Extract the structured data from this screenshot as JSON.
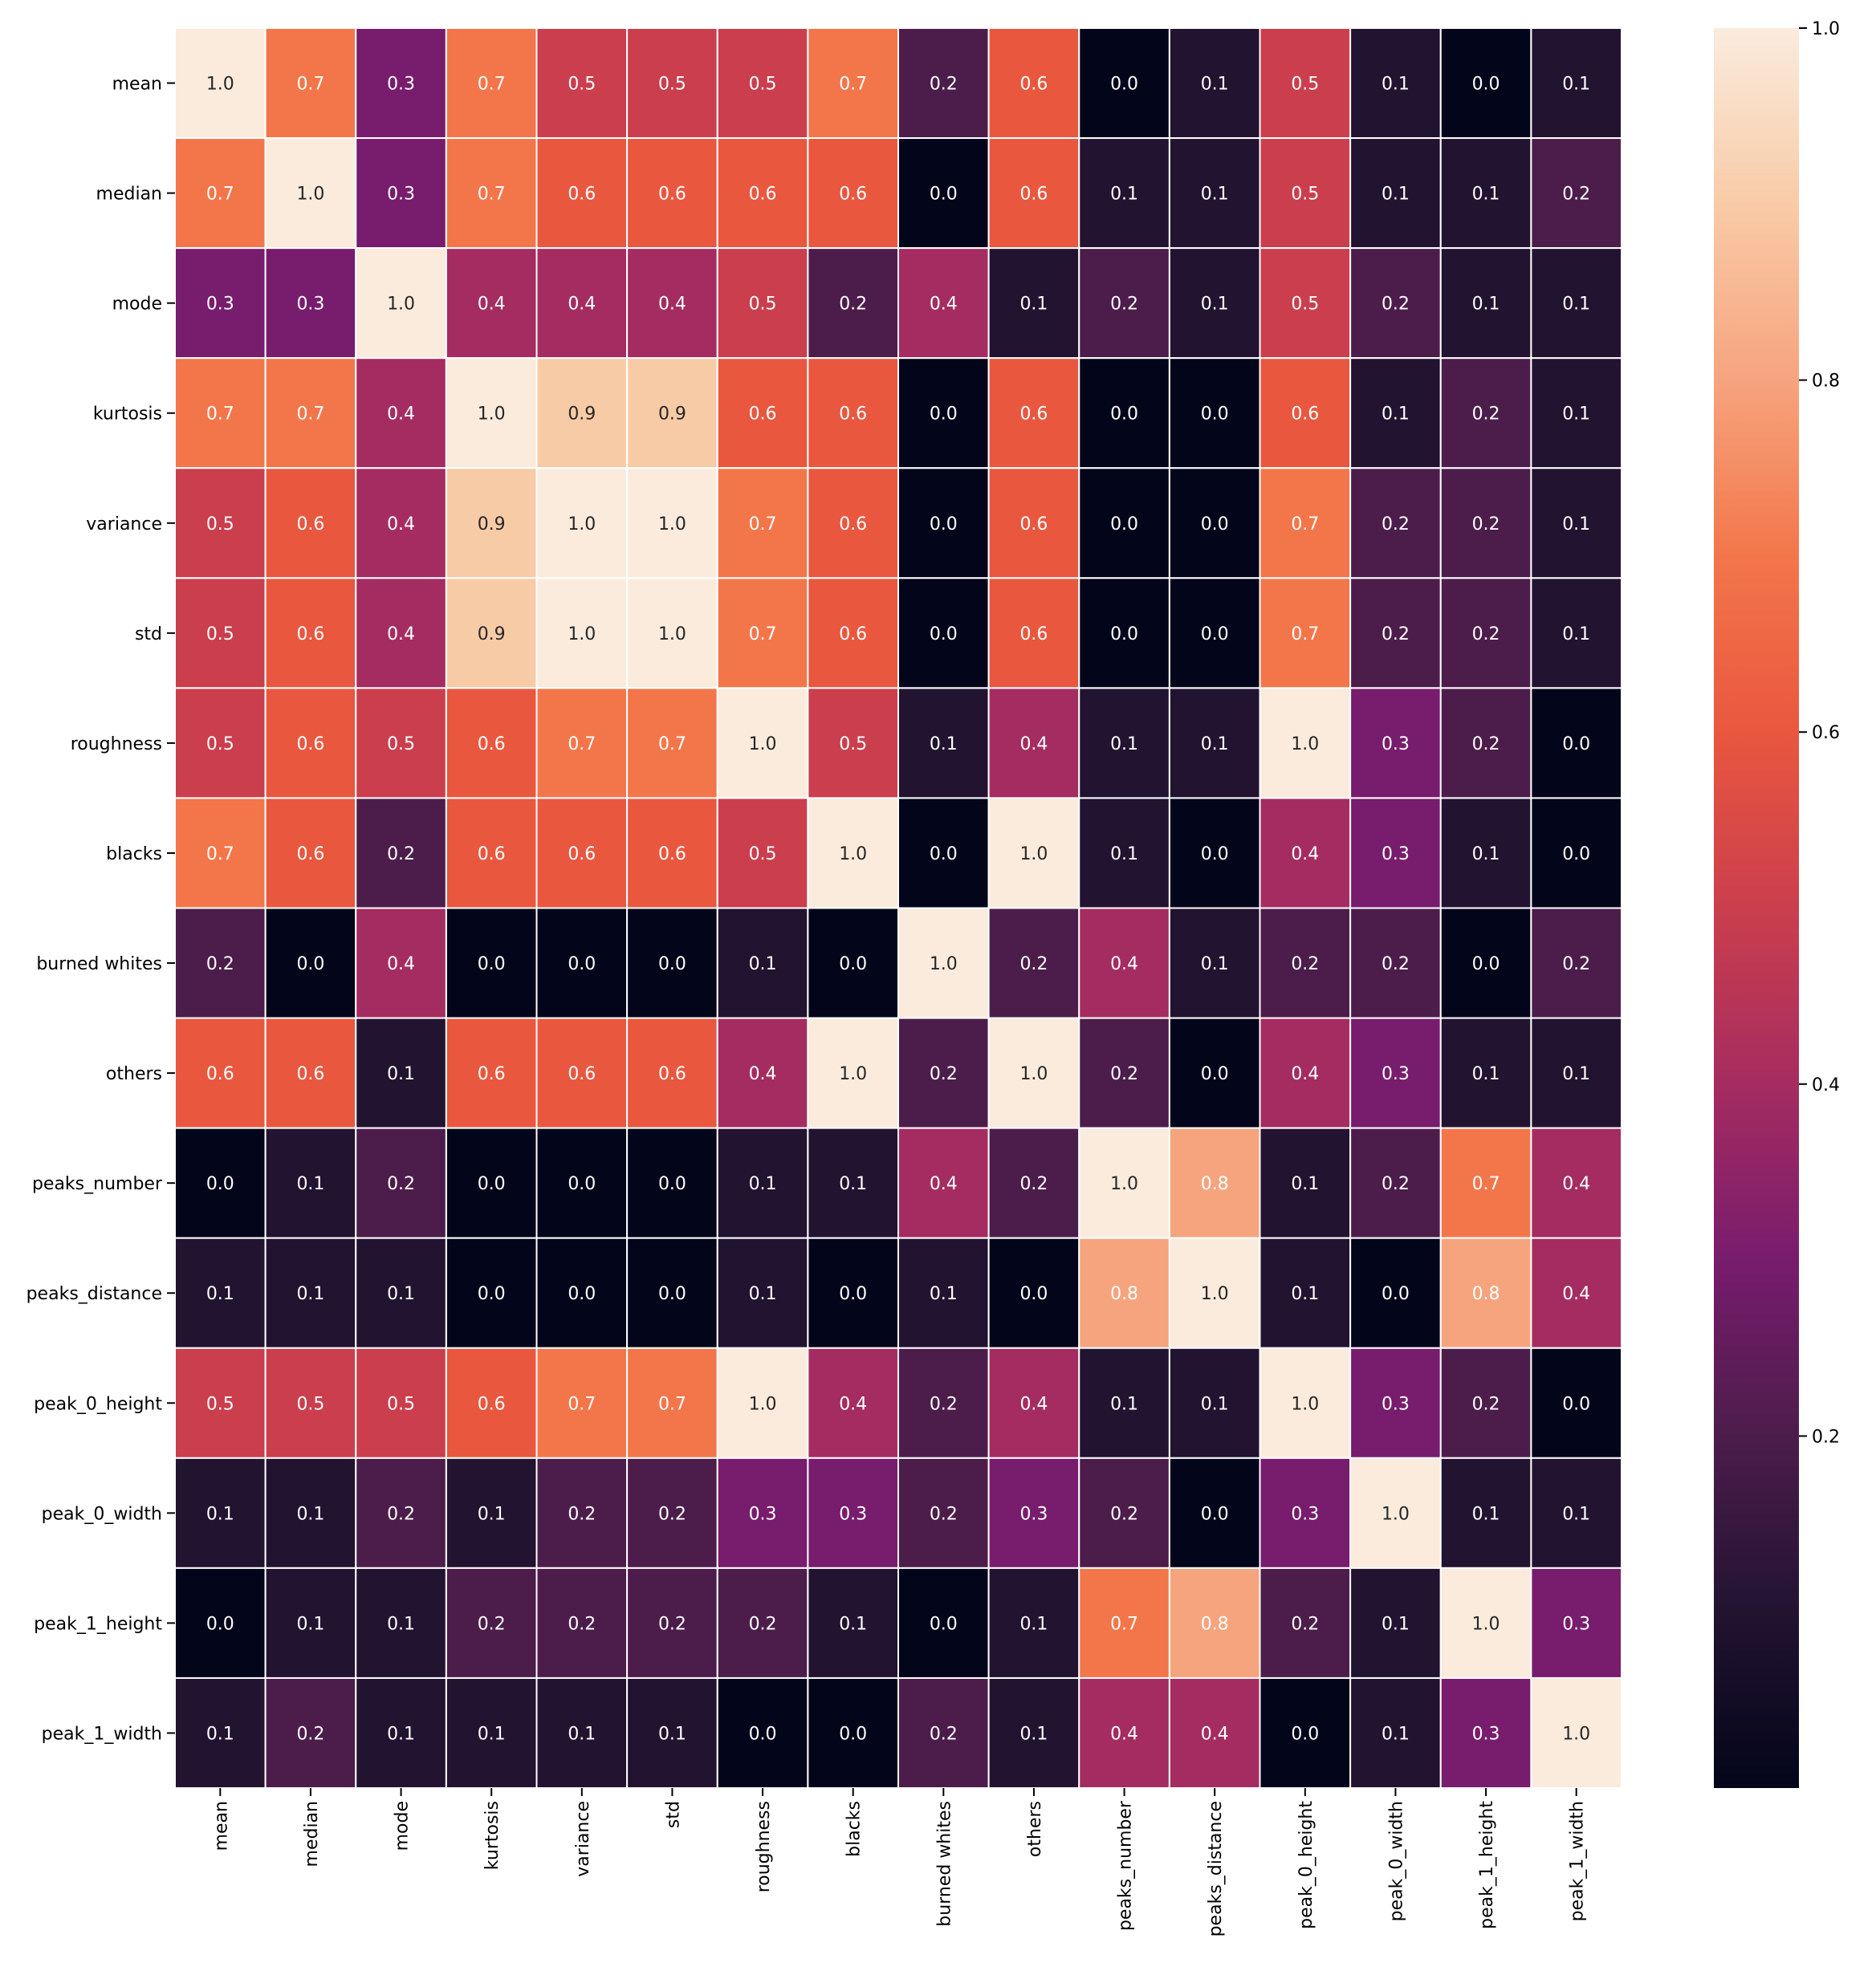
{
  "chart_data": {
    "type": "heatmap",
    "title": "",
    "xlabel": "",
    "ylabel": "",
    "labels": [
      "mean",
      "median",
      "mode",
      "kurtosis",
      "variance",
      "std",
      "roughness",
      "blacks",
      "burned whites",
      "others",
      "peaks_number",
      "peaks_distance",
      "peak_0_height",
      "peak_0_width",
      "peak_1_height",
      "peak_1_width"
    ],
    "matrix": [
      [
        1.0,
        0.7,
        0.3,
        0.7,
        0.5,
        0.5,
        0.5,
        0.7,
        0.2,
        0.6,
        0.0,
        0.1,
        0.5,
        0.1,
        0.0,
        0.1
      ],
      [
        0.7,
        1.0,
        0.3,
        0.7,
        0.6,
        0.6,
        0.6,
        0.6,
        0.0,
        0.6,
        0.1,
        0.1,
        0.5,
        0.1,
        0.1,
        0.2
      ],
      [
        0.3,
        0.3,
        1.0,
        0.4,
        0.4,
        0.4,
        0.5,
        0.2,
        0.4,
        0.1,
        0.2,
        0.1,
        0.5,
        0.2,
        0.1,
        0.1
      ],
      [
        0.7,
        0.7,
        0.4,
        1.0,
        0.9,
        0.9,
        0.6,
        0.6,
        0.0,
        0.6,
        0.0,
        0.0,
        0.6,
        0.1,
        0.2,
        0.1
      ],
      [
        0.5,
        0.6,
        0.4,
        0.9,
        1.0,
        1.0,
        0.7,
        0.6,
        0.0,
        0.6,
        0.0,
        0.0,
        0.7,
        0.2,
        0.2,
        0.1
      ],
      [
        0.5,
        0.6,
        0.4,
        0.9,
        1.0,
        1.0,
        0.7,
        0.6,
        0.0,
        0.6,
        0.0,
        0.0,
        0.7,
        0.2,
        0.2,
        0.1
      ],
      [
        0.5,
        0.6,
        0.5,
        0.6,
        0.7,
        0.7,
        1.0,
        0.5,
        0.1,
        0.4,
        0.1,
        0.1,
        1.0,
        0.3,
        0.2,
        0.0
      ],
      [
        0.7,
        0.6,
        0.2,
        0.6,
        0.6,
        0.6,
        0.5,
        1.0,
        0.0,
        1.0,
        0.1,
        0.0,
        0.4,
        0.3,
        0.1,
        0.0
      ],
      [
        0.2,
        0.0,
        0.4,
        0.0,
        0.0,
        0.0,
        0.1,
        0.0,
        1.0,
        0.2,
        0.4,
        0.1,
        0.2,
        0.2,
        0.0,
        0.2
      ],
      [
        0.6,
        0.6,
        0.1,
        0.6,
        0.6,
        0.6,
        0.4,
        1.0,
        0.2,
        1.0,
        0.2,
        0.0,
        0.4,
        0.3,
        0.1,
        0.1
      ],
      [
        0.0,
        0.1,
        0.2,
        0.0,
        0.0,
        0.0,
        0.1,
        0.1,
        0.4,
        0.2,
        1.0,
        0.8,
        0.1,
        0.2,
        0.7,
        0.4
      ],
      [
        0.1,
        0.1,
        0.1,
        0.0,
        0.0,
        0.0,
        0.1,
        0.0,
        0.1,
        0.0,
        0.8,
        1.0,
        0.1,
        0.0,
        0.8,
        0.4
      ],
      [
        0.5,
        0.5,
        0.5,
        0.6,
        0.7,
        0.7,
        1.0,
        0.4,
        0.2,
        0.4,
        0.1,
        0.1,
        1.0,
        0.3,
        0.2,
        0.0
      ],
      [
        0.1,
        0.1,
        0.2,
        0.1,
        0.2,
        0.2,
        0.3,
        0.3,
        0.2,
        0.3,
        0.2,
        0.0,
        0.3,
        1.0,
        0.1,
        0.1
      ],
      [
        0.0,
        0.1,
        0.1,
        0.2,
        0.2,
        0.2,
        0.2,
        0.1,
        0.0,
        0.1,
        0.7,
        0.8,
        0.2,
        0.1,
        1.0,
        0.3
      ],
      [
        0.1,
        0.2,
        0.1,
        0.1,
        0.1,
        0.1,
        0.0,
        0.0,
        0.2,
        0.1,
        0.4,
        0.4,
        0.0,
        0.1,
        0.3,
        1.0
      ]
    ],
    "colorbar": {
      "min": 0.0,
      "max": 1.0,
      "ticks": [
        1.0,
        0.8,
        0.6,
        0.4,
        0.2
      ],
      "tick_labels": [
        "1.0",
        "0.8",
        "0.6",
        "0.4",
        "0.2"
      ]
    },
    "colormap_stops": [
      "#03051a",
      "#221331",
      "#4c1d4b",
      "#781c6d",
      "#a52c60",
      "#cb3e4d",
      "#e9573f",
      "#f3764a",
      "#f6a47e",
      "#f8cba7",
      "#faebdd"
    ],
    "annotation_colors": {
      "light_text": "#ffffff",
      "dark_text": "#262626"
    },
    "grid_line_color": "#ffffff",
    "legend": "right"
  }
}
